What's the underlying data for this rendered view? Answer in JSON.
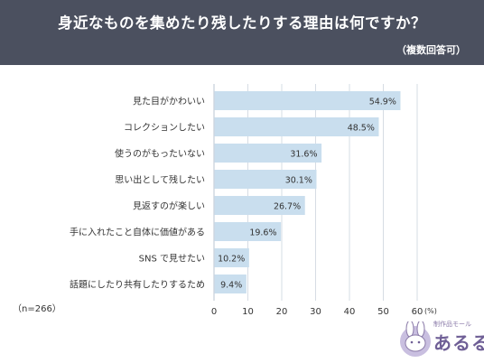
{
  "header": {
    "title": "身近なものを集めたり残したりする理由は何ですか？",
    "subtitle": "（複数回答可）"
  },
  "sample_size": "（n=266）",
  "logo": {
    "tagline": "制作品モール",
    "name": "あるる"
  },
  "colors": {
    "header_bg": "#4b505f",
    "bar": "#c9deee",
    "grid": "#c5ced8"
  },
  "chart_data": {
    "type": "bar",
    "orientation": "horizontal",
    "title": "身近なものを集めたり残したりする理由は何ですか？",
    "subtitle": "（複数回答可）",
    "categories": [
      "見た目がかわいい",
      "コレクションしたい",
      "使うのがもったいない",
      "思い出として残したい",
      "見返すのが楽しい",
      "手に入れたこと自体に価値がある",
      "SNS で見せたい",
      "話題にしたり共有したりするため"
    ],
    "values": [
      54.9,
      48.5,
      31.6,
      30.1,
      26.7,
      19.6,
      10.2,
      9.4
    ],
    "value_labels": [
      "54.9%",
      "48.5%",
      "31.6%",
      "30.1%",
      "26.7%",
      "19.6%",
      "10.2%",
      "9.4%"
    ],
    "xlim": [
      0,
      60
    ],
    "xticks": [
      0,
      10,
      20,
      30,
      40,
      50,
      60
    ],
    "xunit": "(%)",
    "grid": true
  }
}
